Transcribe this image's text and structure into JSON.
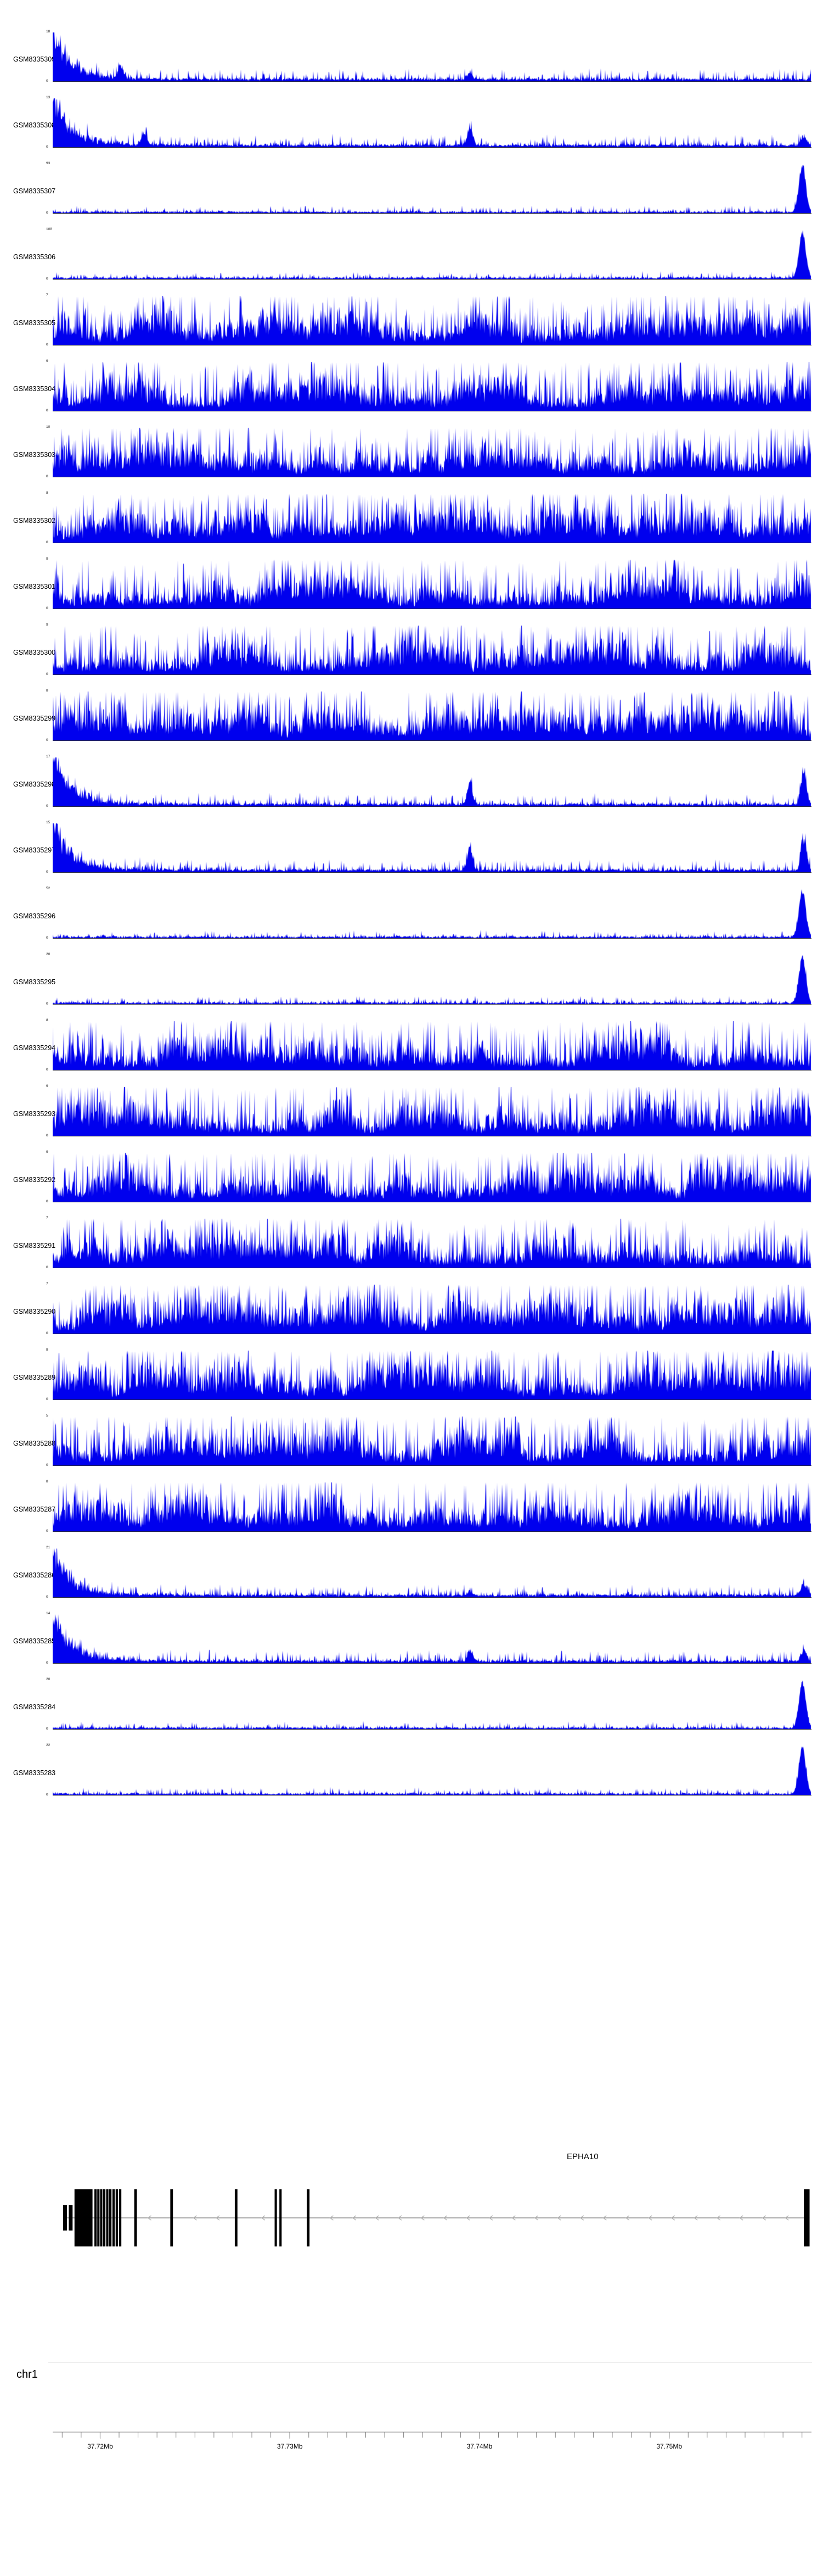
{
  "figure": {
    "background": "#ffffff",
    "signal_color": "#0000ee",
    "baseline_color": "#333333",
    "gene_color": "#000000",
    "intron_color": "#8f8f8f",
    "arrow_color": "#b5b5b5",
    "axis_color": "#808080"
  },
  "chart_data": {
    "type": "area",
    "description": "Genome-browser read-coverage tracks for 27 GEO samples over the EPHA10 locus on chr1 (~37.7175-37.7575 Mb). Each track is a filled blue coverage signal with a tiny y-axis showing 0 and the track maximum.",
    "x_range_mb": [
      37.7175,
      37.7575
    ],
    "y_zero_label": "0",
    "tracks": [
      {
        "name": "GSM8335309",
        "ymax": 18,
        "pattern": "left-decay",
        "peaks": [
          {
            "x": 0.09,
            "h": 0.28
          },
          {
            "x": 0.55,
            "h": 0.16
          }
        ]
      },
      {
        "name": "GSM8335308",
        "ymax": 13,
        "pattern": "left-decay",
        "peaks": [
          {
            "x": 0.12,
            "h": 0.25
          },
          {
            "x": 0.55,
            "h": 0.45
          },
          {
            "x": 0.99,
            "h": 0.25
          }
        ]
      },
      {
        "name": "GSM8335307",
        "ymax": 93,
        "pattern": "right-peak"
      },
      {
        "name": "GSM8335306",
        "ymax": 108,
        "pattern": "right-peak"
      },
      {
        "name": "GSM8335305",
        "ymax": 7,
        "pattern": "uniform"
      },
      {
        "name": "GSM8335304",
        "ymax": 9,
        "pattern": "uniform"
      },
      {
        "name": "GSM8335303",
        "ymax": 10,
        "pattern": "uniform"
      },
      {
        "name": "GSM8335302",
        "ymax": 8,
        "pattern": "uniform"
      },
      {
        "name": "GSM8335301",
        "ymax": 9,
        "pattern": "uniform"
      },
      {
        "name": "GSM8335300",
        "ymax": 9,
        "pattern": "uniform"
      },
      {
        "name": "GSM8335299",
        "ymax": 8,
        "pattern": "uniform"
      },
      {
        "name": "GSM8335298",
        "ymax": 17,
        "pattern": "left-decay",
        "peaks": [
          {
            "x": 0.55,
            "h": 0.5
          },
          {
            "x": 0.99,
            "h": 0.85
          }
        ]
      },
      {
        "name": "GSM8335297",
        "ymax": 15,
        "pattern": "left-decay",
        "peaks": [
          {
            "x": 0.55,
            "h": 0.55
          },
          {
            "x": 0.99,
            "h": 0.9
          }
        ]
      },
      {
        "name": "GSM8335296",
        "ymax": 52,
        "pattern": "right-peak"
      },
      {
        "name": "GSM8335295",
        "ymax": 20,
        "pattern": "right-peak"
      },
      {
        "name": "GSM8335294",
        "ymax": 8,
        "pattern": "uniform"
      },
      {
        "name": "GSM8335293",
        "ymax": 9,
        "pattern": "uniform"
      },
      {
        "name": "GSM8335292",
        "ymax": 9,
        "pattern": "uniform"
      },
      {
        "name": "GSM8335291",
        "ymax": 7,
        "pattern": "uniform"
      },
      {
        "name": "GSM8335290",
        "ymax": 7,
        "pattern": "uniform"
      },
      {
        "name": "GSM8335289",
        "ymax": 8,
        "pattern": "uniform"
      },
      {
        "name": "GSM8335288",
        "ymax": 5,
        "pattern": "uniform"
      },
      {
        "name": "GSM8335287",
        "ymax": 8,
        "pattern": "uniform"
      },
      {
        "name": "GSM8335286",
        "ymax": 21,
        "pattern": "left-decay",
        "peaks": [
          {
            "x": 0.55,
            "h": 0.12
          },
          {
            "x": 0.99,
            "h": 0.3
          }
        ]
      },
      {
        "name": "GSM8335285",
        "ymax": 14,
        "pattern": "left-decay",
        "peaks": [
          {
            "x": 0.55,
            "h": 0.28
          },
          {
            "x": 0.99,
            "h": 0.28
          }
        ]
      },
      {
        "name": "GSM8335284",
        "ymax": 20,
        "pattern": "right-peak"
      },
      {
        "name": "GSM8335283",
        "ymax": 22,
        "pattern": "right-peak"
      }
    ],
    "gene": {
      "label": "EPHA10",
      "strand": "-",
      "line_start_mb": 37.7181,
      "line_end_mb": 37.7574,
      "exons": [
        {
          "s": 37.71805,
          "e": 37.71825,
          "h": "half"
        },
        {
          "s": 37.71835,
          "e": 37.71855,
          "h": "half"
        },
        {
          "s": 37.71865,
          "e": 37.7196,
          "h": "full"
        },
        {
          "s": 37.7197,
          "e": 37.71982,
          "h": "full"
        },
        {
          "s": 37.71985,
          "e": 37.71997,
          "h": "full"
        },
        {
          "s": 37.72,
          "e": 37.72012,
          "h": "full"
        },
        {
          "s": 37.72016,
          "e": 37.72028,
          "h": "full"
        },
        {
          "s": 37.72032,
          "e": 37.72044,
          "h": "full"
        },
        {
          "s": 37.72048,
          "e": 37.7206,
          "h": "full"
        },
        {
          "s": 37.72065,
          "e": 37.72077,
          "h": "full"
        },
        {
          "s": 37.72082,
          "e": 37.72094,
          "h": "full"
        },
        {
          "s": 37.721,
          "e": 37.72112,
          "h": "full"
        },
        {
          "s": 37.7218,
          "e": 37.72194,
          "h": "full"
        },
        {
          "s": 37.7237,
          "e": 37.72384,
          "h": "full"
        },
        {
          "s": 37.7271,
          "e": 37.72724,
          "h": "full"
        },
        {
          "s": 37.7292,
          "e": 37.72932,
          "h": "full"
        },
        {
          "s": 37.72945,
          "e": 37.72957,
          "h": "full"
        },
        {
          "s": 37.7309,
          "e": 37.73104,
          "h": "full"
        },
        {
          "s": 37.7571,
          "e": 37.7574,
          "h": "full"
        }
      ]
    },
    "axis": {
      "chrom_label": "chr1",
      "tick_start_mb": 37.718,
      "tick_end_mb": 37.757,
      "minor_step_mb": 0.001,
      "major_labels": [
        {
          "mb": 37.72,
          "label": "37.72Mb"
        },
        {
          "mb": 37.73,
          "label": "37.73Mb"
        },
        {
          "mb": 37.74,
          "label": "37.74Mb"
        },
        {
          "mb": 37.75,
          "label": "37.75Mb"
        }
      ]
    }
  }
}
